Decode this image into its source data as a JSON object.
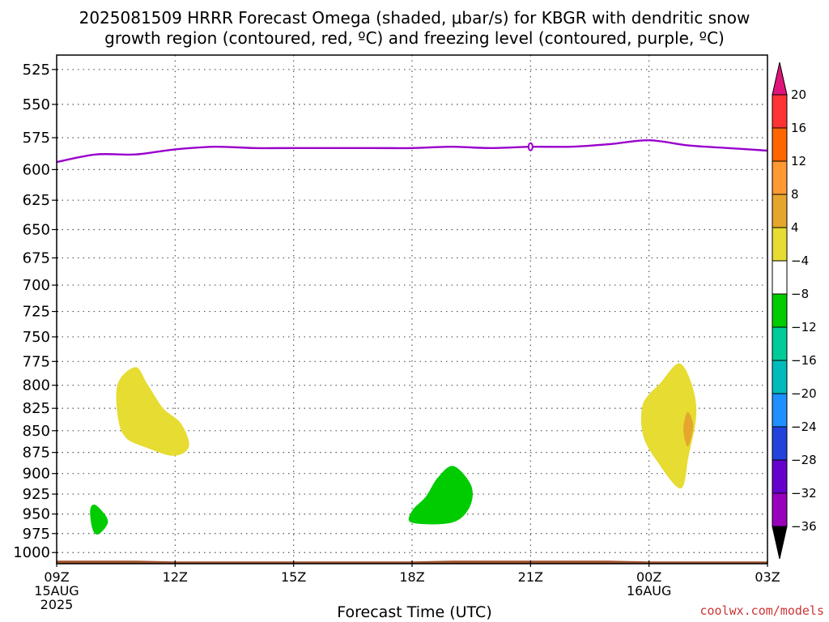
{
  "title": "2025081509 HRRR Forecast Omega (shaded, μbar/s) for KBGR with dendritic snow\ngrowth region (contoured, red, ºC) and freezing level (contoured, purple, ºC)",
  "credit": "coolwx.com/models",
  "chart_data": {
    "type": "time-height",
    "xlabel": "Forecast Time (UTC)",
    "x_ticks": [
      {
        "hour": 0,
        "lines": [
          "09Z",
          "15AUG",
          "2025"
        ]
      },
      {
        "hour": 3,
        "lines": [
          "12Z"
        ]
      },
      {
        "hour": 6,
        "lines": [
          "15Z"
        ]
      },
      {
        "hour": 9,
        "lines": [
          "18Z"
        ]
      },
      {
        "hour": 12,
        "lines": [
          "21Z"
        ]
      },
      {
        "hour": 15,
        "lines": [
          "00Z",
          "16AUG"
        ]
      },
      {
        "hour": 18,
        "lines": [
          "03Z"
        ]
      }
    ],
    "xlim": [
      0,
      18
    ],
    "y_levels": [
      525,
      550,
      575,
      600,
      625,
      650,
      675,
      700,
      725,
      750,
      775,
      800,
      825,
      850,
      875,
      900,
      925,
      950,
      975,
      1000
    ],
    "ylim": [
      1015,
      515
    ],
    "y_scale": "log-pressure",
    "grid": true,
    "freezing_level": {
      "color": "#9900cc",
      "points": [
        [
          0,
          594
        ],
        [
          1,
          588
        ],
        [
          2,
          588
        ],
        [
          3,
          584
        ],
        [
          4,
          582
        ],
        [
          5,
          583
        ],
        [
          6,
          583
        ],
        [
          8,
          583
        ],
        [
          9,
          583
        ],
        [
          10,
          582
        ],
        [
          11,
          583
        ],
        [
          12,
          582
        ],
        [
          13,
          582
        ],
        [
          14,
          580
        ],
        [
          15,
          577
        ],
        [
          16,
          581
        ],
        [
          17,
          583
        ],
        [
          18,
          585
        ]
      ]
    },
    "terrain": {
      "color": "#a0522d",
      "points": [
        [
          0,
          1011
        ],
        [
          2,
          1011
        ],
        [
          3,
          1012
        ],
        [
          9,
          1012
        ],
        [
          10,
          1011
        ],
        [
          14,
          1011
        ],
        [
          15,
          1012
        ],
        [
          18,
          1012
        ]
      ]
    },
    "omega_regions": [
      {
        "color": "#e6dc32",
        "points": [
          [
            1.55,
            798
          ],
          [
            2.0,
            781
          ],
          [
            2.3,
            799
          ],
          [
            2.7,
            825
          ],
          [
            3.15,
            842
          ],
          [
            3.35,
            868
          ],
          [
            2.95,
            879
          ],
          [
            2.25,
            869
          ],
          [
            1.75,
            858
          ],
          [
            1.55,
            835
          ]
        ]
      },
      {
        "color": "#e6dc32",
        "points": [
          [
            15.3,
            797
          ],
          [
            15.75,
            777
          ],
          [
            16.05,
            795
          ],
          [
            16.2,
            830
          ],
          [
            16.0,
            880
          ],
          [
            15.8,
            918
          ],
          [
            15.2,
            885
          ],
          [
            14.85,
            855
          ],
          [
            14.85,
            820
          ]
        ]
      },
      {
        "color": "#e6a62d",
        "points": [
          [
            15.98,
            829
          ],
          [
            16.12,
            845
          ],
          [
            15.98,
            868
          ],
          [
            15.87,
            848
          ]
        ]
      },
      {
        "color": "#00cc00",
        "points": [
          [
            0.85,
            944
          ],
          [
            1.0,
            939
          ],
          [
            1.3,
            959
          ],
          [
            1.05,
            976
          ],
          [
            0.9,
            968
          ]
        ]
      },
      {
        "color": "#00cc00",
        "points": [
          [
            9.0,
            946
          ],
          [
            9.35,
            928
          ],
          [
            9.65,
            905
          ],
          [
            10.05,
            891
          ],
          [
            10.5,
            915
          ],
          [
            10.45,
            942
          ],
          [
            10.0,
            961
          ],
          [
            9.0,
            961
          ]
        ]
      }
    ],
    "colorbar": {
      "labels": [
        "20",
        "16",
        "12",
        "8",
        "4",
        "−4",
        "−8",
        "−12",
        "−16",
        "−20",
        "−24",
        "−28",
        "−32",
        "−36"
      ],
      "colors": [
        "#e0137a",
        "#ff3333",
        "#ff6600",
        "#ff9933",
        "#e6a62d",
        "#e6dc32",
        "#ffffff",
        "#00cc00",
        "#00cc99",
        "#00bbbb",
        "#1e90ff",
        "#2244dd",
        "#6600cc",
        "#9900bb",
        "#b0b0b0",
        "#000000"
      ]
    }
  }
}
